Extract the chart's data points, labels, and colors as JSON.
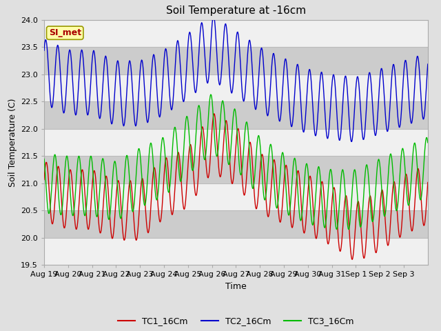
{
  "title": "Soil Temperature at -16cm",
  "xlabel": "Time",
  "ylabel": "Soil Temperature (C)",
  "ylim": [
    19.5,
    24.0
  ],
  "yticks": [
    19.5,
    20.0,
    20.5,
    21.0,
    21.5,
    22.0,
    22.5,
    23.0,
    23.5,
    24.0
  ],
  "x_labels": [
    "Aug 19",
    "Aug 20",
    "Aug 21",
    "Aug 22",
    "Aug 23",
    "Aug 24",
    "Aug 25",
    "Aug 26",
    "Aug 27",
    "Aug 28",
    "Aug 29",
    "Aug 30",
    "Aug 31",
    "Sep 1",
    "Sep 2",
    "Sep 3"
  ],
  "line_colors": [
    "#cc0000",
    "#0000cc",
    "#00bb00"
  ],
  "line_labels": [
    "TC1_16Cm",
    "TC2_16Cm",
    "TC3_16Cm"
  ],
  "fig_bg_color": "#e0e0e0",
  "plot_bg_color": "#e0e0e0",
  "band_light": "#f0f0f0",
  "band_dark": "#cccccc",
  "annotation_text": "SI_met",
  "annotation_bg": "#ffffaa",
  "annotation_border": "#999900",
  "annotation_text_color": "#aa0000",
  "title_fontsize": 11,
  "axis_fontsize": 9,
  "tick_fontsize": 8,
  "legend_fontsize": 9
}
